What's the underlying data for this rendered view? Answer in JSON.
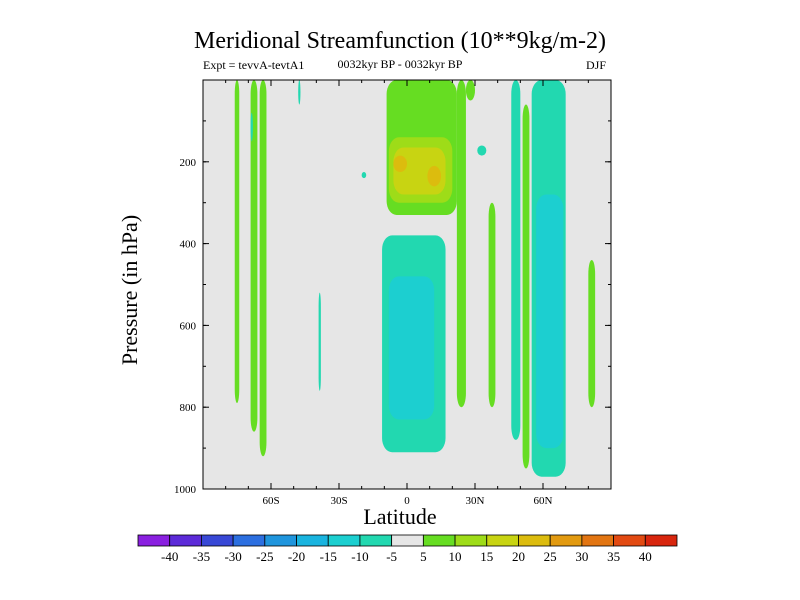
{
  "chart_data": {
    "type": "heatmap",
    "title": "Meridional Streamfunction (10**9kg/m-2)",
    "subtitle_left": "Expt = tevvA-tevtA1",
    "subtitle_center": "0032kyr BP - 0032kyr BP",
    "subtitle_right": "DJF",
    "xlabel": "Latitude",
    "ylabel": "Pressure (in hPa)",
    "xlim": [
      -90,
      90
    ],
    "ylim": [
      1000,
      0
    ],
    "x_ticks": [
      -60,
      -30,
      0,
      30,
      60
    ],
    "x_tick_labels": [
      "60S",
      "30S",
      "0",
      "30N",
      "60N"
    ],
    "y_ticks": [
      200,
      400,
      600,
      800,
      1000
    ],
    "y_tick_labels": [
      "200",
      "400",
      "600",
      "800",
      "1000"
    ],
    "colorbar": {
      "labels": [
        "-40",
        "-35",
        "-30",
        "-25",
        "-20",
        "-15",
        "-10",
        "-5",
        "5",
        "10",
        "15",
        "20",
        "25",
        "30",
        "35",
        "40"
      ],
      "colors": [
        "#8a20e0",
        "#5c2ad8",
        "#3848d6",
        "#2c6fe0",
        "#1f95dd",
        "#19b4df",
        "#1ccfd0",
        "#22d8b0",
        "#e6e6e6",
        "#66dd22",
        "#9edc18",
        "#c8d412",
        "#dcbc0e",
        "#e29a10",
        "#e27512",
        "#e24a12",
        "#d8260e"
      ]
    },
    "background_color": "#e6e6e6",
    "regions": [
      {
        "level": 5,
        "x": [
          -76,
          -74
        ],
        "y": [
          0,
          790
        ]
      },
      {
        "level": 5,
        "x": [
          -69,
          -66
        ],
        "y": [
          0,
          860
        ]
      },
      {
        "level": -5,
        "x": [
          -69,
          -68
        ],
        "y": [
          80,
          150
        ]
      },
      {
        "level": 5,
        "x": [
          -65,
          -62
        ],
        "y": [
          0,
          920
        ]
      },
      {
        "level": -5,
        "x": [
          -48,
          -47
        ],
        "y": [
          0,
          60
        ]
      },
      {
        "level": -5,
        "x": [
          -39,
          -38
        ],
        "y": [
          520,
          760
        ]
      },
      {
        "level": -5,
        "x": [
          -20,
          -18
        ],
        "y": [
          225,
          240
        ]
      },
      {
        "level": -5,
        "x": [
          -11,
          17
        ],
        "y": [
          380,
          910
        ]
      },
      {
        "level": -10,
        "x": [
          -8,
          12
        ],
        "y": [
          480,
          830
        ]
      },
      {
        "level": 5,
        "x": [
          -9,
          22
        ],
        "y": [
          0,
          330
        ]
      },
      {
        "level": 5,
        "x": [
          22,
          26
        ],
        "y": [
          0,
          800
        ]
      },
      {
        "level": 10,
        "x": [
          -8,
          20
        ],
        "y": [
          140,
          300
        ]
      },
      {
        "level": 15,
        "x": [
          -6,
          17
        ],
        "y": [
          165,
          280
        ]
      },
      {
        "level": 20,
        "x": [
          -6,
          0
        ],
        "y": [
          185,
          225
        ]
      },
      {
        "level": 20,
        "x": [
          9,
          15
        ],
        "y": [
          210,
          260
        ]
      },
      {
        "level": 5,
        "x": [
          26,
          30
        ],
        "y": [
          0,
          50
        ]
      },
      {
        "level": -5,
        "x": [
          31,
          35
        ],
        "y": [
          160,
          185
        ]
      },
      {
        "level": 5,
        "x": [
          36,
          39
        ],
        "y": [
          300,
          800
        ]
      },
      {
        "level": -5,
        "x": [
          46,
          50
        ],
        "y": [
          0,
          880
        ]
      },
      {
        "level": 5,
        "x": [
          51,
          54
        ],
        "y": [
          60,
          950
        ]
      },
      {
        "level": -5,
        "x": [
          55,
          70
        ],
        "y": [
          0,
          970
        ]
      },
      {
        "level": -10,
        "x": [
          57,
          69
        ],
        "y": [
          280,
          900
        ]
      },
      {
        "level": 5,
        "x": [
          80,
          83
        ],
        "y": [
          440,
          800
        ]
      }
    ]
  }
}
